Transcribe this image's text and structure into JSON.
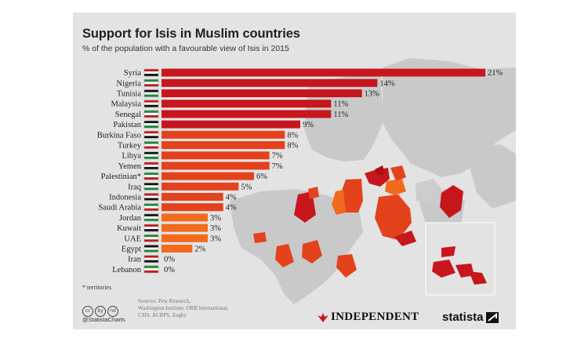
{
  "header": {
    "title": "Support for Isis in Muslim countries",
    "subtitle": "% of the population with a favourable view of Isis in 2015"
  },
  "chart_data": {
    "type": "bar",
    "orientation": "horizontal",
    "title": "Support for Isis in Muslim countries",
    "subtitle": "% of the population with a favourable view of Isis in 2015",
    "categories": [
      "Syria",
      "Nigeria",
      "Tunisia",
      "Malaysia",
      "Senegal",
      "Pakistan",
      "Burkina Faso",
      "Turkey",
      "Libya",
      "Yemen",
      "Palestinian*",
      "Iraq",
      "Indonesia",
      "Saudi Arabia",
      "Jordan",
      "Kuwait",
      "UAE",
      "Egypt",
      "Iran",
      "Lebanon"
    ],
    "values": [
      21,
      14,
      13,
      11,
      11,
      9,
      8,
      8,
      7,
      7,
      6,
      5,
      4,
      4,
      3,
      3,
      3,
      2,
      0,
      0
    ],
    "value_labels": [
      "21%",
      "14%",
      "13%",
      "11%",
      "11%",
      "9%",
      "8%",
      "8%",
      "7%",
      "7%",
      "6%",
      "5%",
      "4%",
      "4%",
      "3%",
      "3%",
      "3%",
      "2%",
      "0%",
      "0%"
    ],
    "xlim": [
      0,
      21
    ],
    "grid": false,
    "legend": "none",
    "colors": {
      "high": "#c8161d",
      "mid": "#e4421d",
      "low": "#f26b1d"
    }
  },
  "footer": {
    "footnote": "* territories",
    "cc_icons": [
      "cc",
      "by",
      "nd"
    ],
    "handle": "@StatistaCharts",
    "sources_lines": [
      "Sources: Pew Research,",
      "Washington Institute, ORB International,",
      "CSIS, ACRPS, Zogby"
    ],
    "brand_independent": "INDEPENDENT",
    "brand_statista": "statista"
  },
  "map": {
    "land_color": "#c9c9c9",
    "ocean_color": "#e3e3e3"
  }
}
